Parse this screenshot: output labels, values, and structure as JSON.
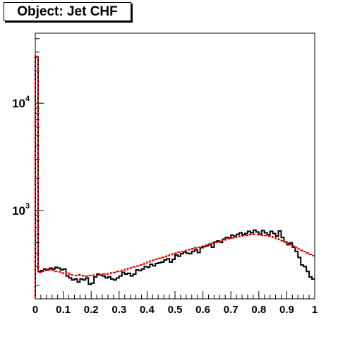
{
  "chart_data": {
    "type": "step",
    "title": "Object: Jet CHF",
    "xlim": [
      0,
      1
    ],
    "ylim": [
      150,
      45000
    ],
    "log_y": true,
    "grid": false,
    "legend": "none",
    "x_ticks": [
      "0",
      "0.1",
      "0.2",
      "0.3",
      "0.4",
      "0.5",
      "0.6",
      "0.7",
      "0.8",
      "0.9",
      "1"
    ],
    "y_ticks": [
      {
        "value": 10000,
        "base": "10",
        "exp": "4"
      },
      {
        "value": 1000,
        "base": "10",
        "exp": "3"
      }
    ],
    "bins": 100,
    "series": [
      {
        "color": "#000000",
        "style": "solid",
        "values": [
          27000,
          270,
          275,
          285,
          280,
          290,
          285,
          295,
          290,
          280,
          285,
          245,
          235,
          225,
          230,
          215,
          230,
          225,
          235,
          205,
          210,
          240,
          255,
          250,
          245,
          235,
          240,
          230,
          225,
          235,
          245,
          265,
          255,
          260,
          245,
          255,
          280,
          275,
          285,
          300,
          295,
          315,
          305,
          320,
          325,
          330,
          345,
          355,
          330,
          350,
          385,
          375,
          395,
          410,
          400,
          395,
          415,
          430,
          405,
          450,
          460,
          470,
          480,
          455,
          510,
          520,
          505,
          540,
          560,
          555,
          590,
          575,
          600,
          620,
          595,
          610,
          640,
          620,
          655,
          630,
          600,
          650,
          620,
          595,
          640,
          610,
          575,
          645,
          560,
          510,
          480,
          500,
          455,
          415,
          365,
          310,
          300,
          270,
          240,
          230
        ]
      },
      {
        "color": "#ee0000",
        "style": "dashed",
        "values": [
          27500,
          265,
          270,
          275,
          280,
          282,
          278,
          270,
          268,
          262,
          258,
          262,
          255,
          250,
          248,
          252,
          248,
          246,
          244,
          248,
          250,
          246,
          248,
          252,
          256,
          254,
          258,
          262,
          264,
          270,
          272,
          278,
          282,
          288,
          292,
          298,
          304,
          310,
          316,
          322,
          330,
          338,
          344,
          352,
          358,
          366,
          372,
          380,
          388,
          394,
          400,
          408,
          414,
          420,
          428,
          434,
          440,
          448,
          454,
          462,
          470,
          478,
          488,
          496,
          504,
          512,
          522,
          530,
          538,
          546,
          554,
          562,
          570,
          576,
          582,
          588,
          594,
          598,
          600,
          596,
          592,
          588,
          584,
          578,
          570,
          560,
          548,
          536,
          522,
          508,
          494,
          480,
          466,
          452,
          438,
          426,
          414,
          402,
          390,
          380
        ]
      }
    ]
  }
}
